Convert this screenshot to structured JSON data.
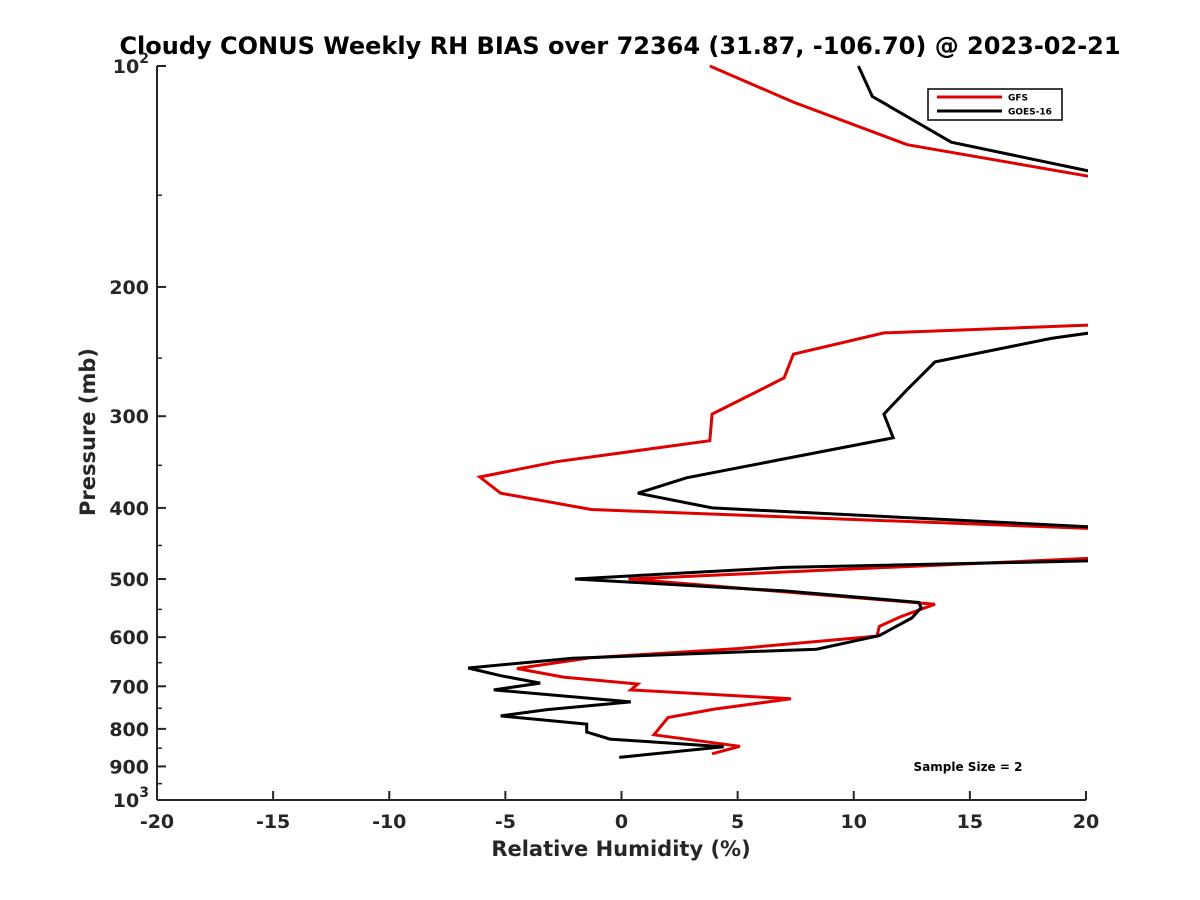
{
  "chart_data": {
    "type": "line",
    "title": "Cloudy CONUS Weekly RH BIAS over 72364 (31.87, -106.70) @ 2023-02-21",
    "xlabel": "Relative Humidity (%)",
    "ylabel": "Pressure (mb)",
    "xlim": [
      -20,
      20
    ],
    "ylim": [
      1000,
      100
    ],
    "yscale": "log",
    "grid": false,
    "legend_position": "top-right",
    "x_ticks": [
      "-20",
      "-15",
      "-10",
      "-5",
      "0",
      "5",
      "10",
      "15",
      "20"
    ],
    "y_ticks": [
      {
        "value": 100,
        "base": "10",
        "exp": "2"
      },
      {
        "value": 200,
        "label": "200"
      },
      {
        "value": 300,
        "label": "300"
      },
      {
        "value": 400,
        "label": "400"
      },
      {
        "value": 500,
        "label": "500"
      },
      {
        "value": 600,
        "label": "600"
      },
      {
        "value": 700,
        "label": "700"
      },
      {
        "value": 800,
        "label": "800"
      },
      {
        "value": 900,
        "label": "900"
      },
      {
        "value": 1000,
        "base": "10",
        "exp": "3"
      }
    ],
    "annotation": "Sample Size = 2",
    "series": [
      {
        "name": "GFS",
        "color": "#e00000",
        "points": [
          [
            3.8,
            100
          ],
          [
            7.4,
            112
          ],
          [
            12.3,
            128
          ],
          [
            20.5,
            142
          ],
          [
            null,
            null
          ],
          [
            20.8,
            225
          ],
          [
            11.3,
            231
          ],
          [
            7.4,
            247
          ],
          [
            7.0,
            266
          ],
          [
            3.9,
            298
          ],
          [
            3.8,
            324
          ],
          [
            -2.8,
            346
          ],
          [
            -6.1,
            363
          ],
          [
            -5.2,
            382
          ],
          [
            -1.3,
            402
          ],
          [
            20.5,
            427
          ],
          [
            null,
            null
          ],
          [
            20.5,
            468
          ],
          [
            0.3,
            500
          ],
          [
            13.5,
            541
          ],
          [
            12.0,
            563
          ],
          [
            11.1,
            580
          ],
          [
            11.0,
            598
          ],
          [
            5.0,
            622
          ],
          [
            -1.3,
            640
          ],
          [
            -4.5,
            662
          ],
          [
            -2.5,
            680
          ],
          [
            0.7,
            695
          ],
          [
            0.4,
            708
          ],
          [
            7.3,
            728
          ],
          [
            4.0,
            752
          ],
          [
            2.0,
            772
          ],
          [
            1.4,
            815
          ],
          [
            5.1,
            845
          ],
          [
            3.9,
            865
          ]
        ]
      },
      {
        "name": "GOES-16",
        "color": "#000000",
        "points": [
          [
            10.2,
            100
          ],
          [
            10.8,
            110
          ],
          [
            14.2,
            127
          ],
          [
            20.6,
            140
          ],
          [
            null,
            null
          ],
          [
            20.6,
            230
          ],
          [
            18.5,
            235
          ],
          [
            13.5,
            253
          ],
          [
            12.3,
            276
          ],
          [
            11.3,
            298
          ],
          [
            11.7,
            321
          ],
          [
            7.0,
            343
          ],
          [
            2.8,
            364
          ],
          [
            0.7,
            382
          ],
          [
            3.9,
            400
          ],
          [
            20.5,
            425
          ],
          [
            null,
            null
          ],
          [
            20.5,
            472
          ],
          [
            7.0,
            482
          ],
          [
            -2.0,
            500
          ],
          [
            7.0,
            519
          ],
          [
            12.8,
            538
          ],
          [
            12.9,
            547
          ],
          [
            12.5,
            565
          ],
          [
            11.1,
            597
          ],
          [
            8.4,
            623
          ],
          [
            -2.1,
            641
          ],
          [
            -6.6,
            661
          ],
          [
            -5.2,
            677
          ],
          [
            -3.5,
            693
          ],
          [
            -5.5,
            708
          ],
          [
            0.4,
            735
          ],
          [
            -3.2,
            753
          ],
          [
            -5.2,
            768
          ],
          [
            -1.5,
            788
          ],
          [
            -1.5,
            808
          ],
          [
            -0.5,
            826
          ],
          [
            4.4,
            846
          ],
          [
            -0.1,
            875
          ]
        ]
      }
    ]
  }
}
